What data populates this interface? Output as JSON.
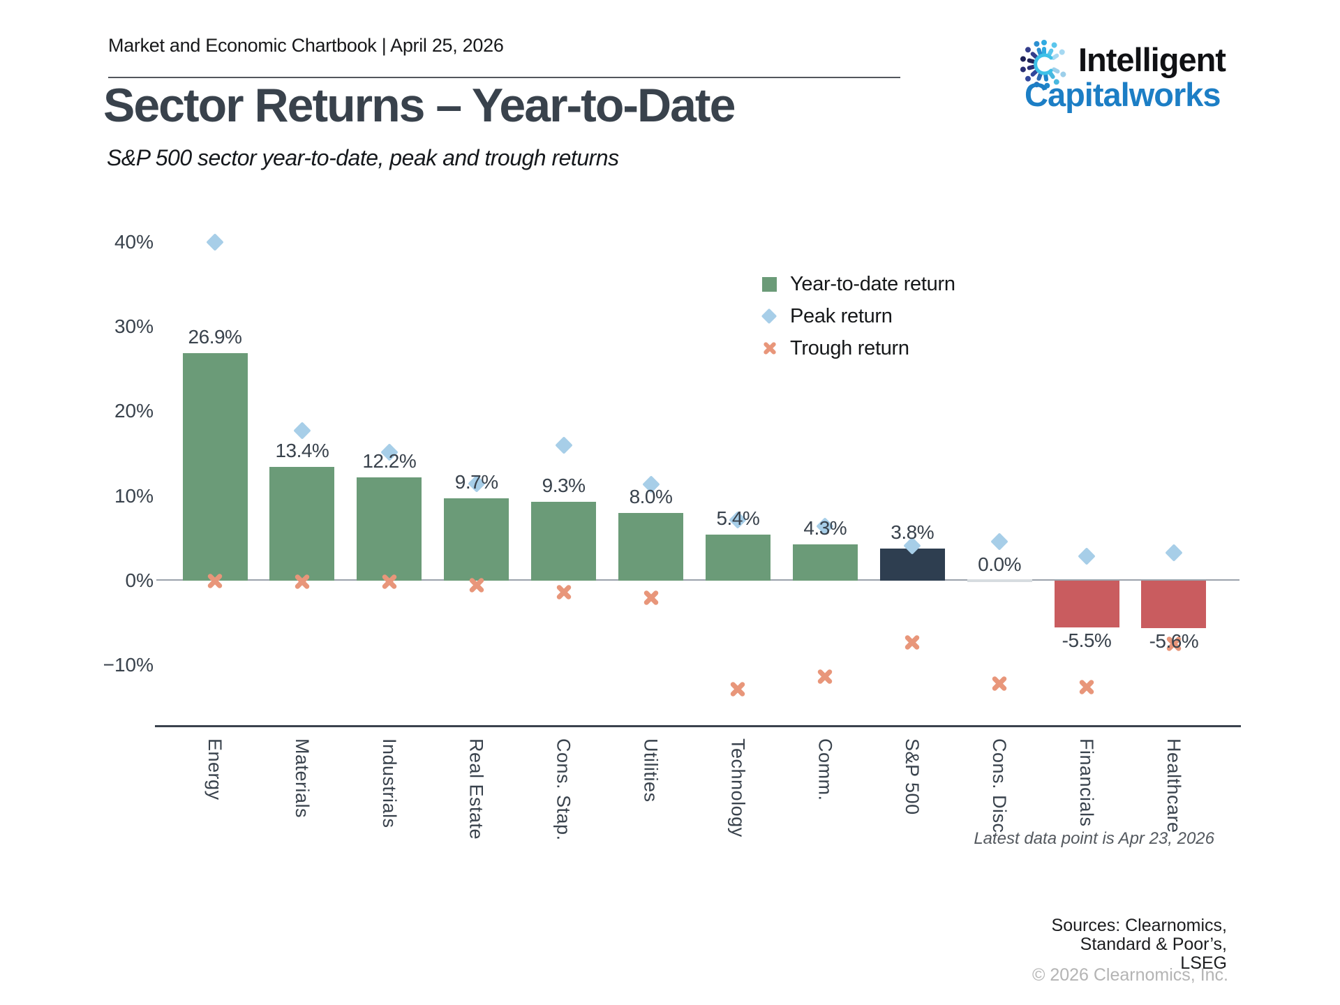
{
  "header": {
    "text": "Market and Economic Chartbook | April 25, 2026"
  },
  "logo": {
    "word1": "Intelligent",
    "word2": "Capitalworks"
  },
  "title": "Sector Returns – Year-to-Date",
  "subtitle": "S&P 500 sector year-to-date, peak and trough returns",
  "legend": [
    {
      "label": "Year-to-date return",
      "marker": "square",
      "color": "#6B9B78"
    },
    {
      "label": "Peak return",
      "marker": "diamond",
      "color": "#A7CEE8"
    },
    {
      "label": "Trough return",
      "marker": "x",
      "color": "#E8967A"
    }
  ],
  "chart_data": {
    "type": "bar",
    "title": "Sector Returns – Year-to-Date",
    "subtitle": "S&P 500 sector year-to-date, peak and trough returns",
    "categories": [
      "Energy",
      "Materials",
      "Industrials",
      "Real Estate",
      "Cons. Stap.",
      "Utilities",
      "Technology",
      "Comm.",
      "S&P 500",
      "Cons. Disc.",
      "Financials",
      "Healthcare"
    ],
    "series": [
      {
        "name": "Year-to-date return",
        "values": [
          26.9,
          13.4,
          12.2,
          9.7,
          9.3,
          8.0,
          5.4,
          4.3,
          3.8,
          0.0,
          -5.5,
          -5.6
        ],
        "labels": [
          "26.9%",
          "13.4%",
          "12.2%",
          "9.7%",
          "9.3%",
          "8.0%",
          "5.4%",
          "4.3%",
          "3.8%",
          "0.0%",
          "-5.5%",
          "-5.6%"
        ]
      },
      {
        "name": "Peak return",
        "values": [
          40.0,
          17.7,
          15.2,
          11.5,
          16.0,
          11.4,
          7.2,
          6.4,
          4.1,
          4.6,
          2.9,
          3.3
        ]
      },
      {
        "name": "Trough return",
        "values": [
          0.0,
          -0.1,
          -0.1,
          -0.5,
          -1.4,
          -2.0,
          -12.8,
          -11.3,
          -7.3,
          -12.2,
          -12.6,
          -7.5
        ]
      }
    ],
    "highlight_category": "S&P 500",
    "colors": {
      "positive_bar": "#6B9B78",
      "highlight_bar": "#2E3E50",
      "negative_bar": "#C95C5F",
      "zero_bar": "#d7dce0",
      "peak_marker": "#A7CEE8",
      "trough_marker": "#E8967A"
    },
    "xlabel": "",
    "ylabel": "",
    "yticks": [
      "40%",
      "30%",
      "20%",
      "10%",
      "0%",
      "−10%"
    ],
    "ytick_values": [
      40,
      30,
      20,
      10,
      0,
      -10
    ],
    "ylim": [
      -17.2,
      46.3
    ],
    "grid": false,
    "legend_position": "upper-right",
    "x_label_rotation": 90
  },
  "footnote": "Latest data point is Apr 23, 2026",
  "sources": {
    "line1": "Sources: Clearnomics,",
    "line2": "Standard & Poor’s,",
    "line3": "LSEG"
  },
  "copyright": "© 2026 Clearnomics, Inc."
}
